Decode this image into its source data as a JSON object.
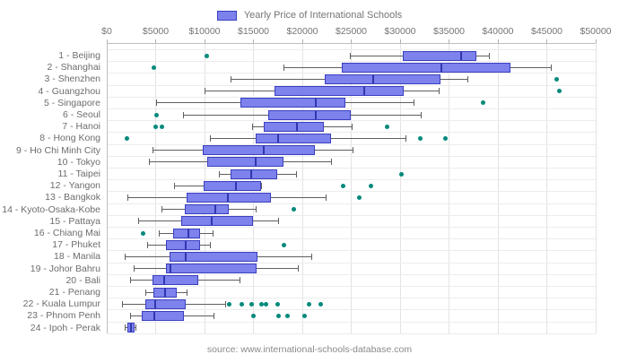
{
  "legend": {
    "label": "Yearly Price of International Schools"
  },
  "source_caption": "source: www.international-schools-database.com",
  "colors": {
    "box_fill": "#7d82ec",
    "box_border": "#3a3fc0",
    "median": "#3136b0",
    "whisker": "#5f5f5f",
    "outlier": "#00897b",
    "vgrid": "#e3e3e3",
    "hgrid": "#ececec",
    "axis_line": "#bdbdbd",
    "tick": "#b0b0b0",
    "text": "#757575"
  },
  "chart_data": {
    "type": "boxplot",
    "orientation": "horizontal",
    "title": "Yearly Price of International Schools",
    "xlabel": "",
    "ylabel": "",
    "xlim": [
      0,
      50000
    ],
    "grid": true,
    "legend_position": "top-center",
    "x_ticks": [
      "$0",
      "$5000",
      "$10000",
      "$15000",
      "$20000",
      "$25000",
      "$30000",
      "$35000",
      "$40000",
      "$45000",
      "$50000"
    ],
    "x_tick_values": [
      0,
      5000,
      10000,
      15000,
      20000,
      25000,
      30000,
      35000,
      40000,
      45000,
      50000
    ],
    "categories": [
      "1 - Beijing",
      "2 - Shanghai",
      "3 - Shenzhen",
      "4 - Guangzhou",
      "5 - Singapore",
      "6 - Seoul",
      "7 - Hanoi",
      "8 - Hong Kong",
      "9 - Ho Chi Minh City",
      "10 - Tokyo",
      "11 - Taipei",
      "12 - Yangon",
      "13 - Bangkok",
      "14 - Kyoto-Osaka-Kobe",
      "15 - Pattaya",
      "16 - Chiang Mai",
      "17 - Phuket",
      "18 - Manila",
      "19 - Johor Bahru",
      "20 - Bali",
      "21 - Penang",
      "22 - Kuala Lumpur",
      "23 - Phnom Penh",
      "24 - Ipoh - Perak"
    ],
    "series": [
      {
        "name": "Yearly Price of International Schools",
        "boxes": [
          {
            "low": 24900,
            "q1": 30300,
            "median": 36200,
            "q3": 37800,
            "high": 39100,
            "outliers": [
              10200
            ]
          },
          {
            "low": 18100,
            "q1": 24000,
            "median": 34200,
            "q3": 41300,
            "high": 45500,
            "outliers": [
              4800
            ]
          },
          {
            "low": 12700,
            "q1": 22300,
            "median": 27200,
            "q3": 34100,
            "high": 36900,
            "outliers": [
              46000
            ]
          },
          {
            "low": 10000,
            "q1": 17200,
            "median": 26300,
            "q3": 30400,
            "high": 34000,
            "outliers": [
              46300
            ]
          },
          {
            "low": 5100,
            "q1": 13700,
            "median": 21300,
            "q3": 24400,
            "high": 31400,
            "outliers": [
              38500
            ]
          },
          {
            "low": 7800,
            "q1": 16500,
            "median": 21300,
            "q3": 25000,
            "high": 32200,
            "outliers": [
              5100
            ]
          },
          {
            "low": 14900,
            "q1": 16100,
            "median": 19400,
            "q3": 22200,
            "high": 25100,
            "outliers": [
              5000,
              5600,
              28700
            ]
          },
          {
            "low": 10600,
            "q1": 15200,
            "median": 17500,
            "q3": 22900,
            "high": 30600,
            "outliers": [
              2100,
              32100,
              34600
            ]
          },
          {
            "low": 4700,
            "q1": 9800,
            "median": 16000,
            "q3": 21300,
            "high": 25200,
            "outliers": []
          },
          {
            "low": 4400,
            "q1": 10300,
            "median": 15200,
            "q3": 18100,
            "high": 23000,
            "outliers": []
          },
          {
            "low": 11500,
            "q1": 12700,
            "median": 14700,
            "q3": 17400,
            "high": 19400,
            "outliers": [
              30100
            ]
          },
          {
            "low": 6900,
            "q1": 9900,
            "median": 13200,
            "q3": 15800,
            "high": 15800,
            "outliers": [
              24200,
              27000
            ]
          },
          {
            "low": 2200,
            "q1": 8200,
            "median": 12300,
            "q3": 16800,
            "high": 22400,
            "outliers": [
              25800
            ]
          },
          {
            "low": 5600,
            "q1": 8000,
            "median": 11100,
            "q3": 12500,
            "high": 15300,
            "outliers": [
              19100
            ]
          },
          {
            "low": 3300,
            "q1": 7600,
            "median": 10700,
            "q3": 15000,
            "high": 17600,
            "outliers": []
          },
          {
            "low": 5400,
            "q1": 6800,
            "median": 8300,
            "q3": 9500,
            "high": 10900,
            "outliers": [
              3700
            ]
          },
          {
            "low": 4200,
            "q1": 6100,
            "median": 8000,
            "q3": 9500,
            "high": 10600,
            "outliers": [
              18100
            ]
          },
          {
            "low": 1900,
            "q1": 6400,
            "median": 8000,
            "q3": 15400,
            "high": 21000,
            "outliers": []
          },
          {
            "low": 2800,
            "q1": 6100,
            "median": 6500,
            "q3": 15300,
            "high": 19600,
            "outliers": []
          },
          {
            "low": 2400,
            "q1": 4700,
            "median": 5800,
            "q3": 9400,
            "high": 13600,
            "outliers": []
          },
          {
            "low": 4000,
            "q1": 4800,
            "median": 5900,
            "q3": 7200,
            "high": 8200,
            "outliers": []
          },
          {
            "low": 1600,
            "q1": 3900,
            "median": 4900,
            "q3": 8100,
            "high": 12200,
            "outliers": [
              12500,
              13800,
              14800,
              15800,
              16300,
              17500,
              20700,
              21900
            ]
          },
          {
            "low": 2400,
            "q1": 3600,
            "median": 4800,
            "q3": 7900,
            "high": 11000,
            "outliers": [
              15000,
              17600,
              18500,
              20200
            ]
          },
          {
            "low": 1900,
            "q1": 2100,
            "median": 2400,
            "q3": 2800,
            "high": 3000,
            "outliers": []
          }
        ]
      }
    ],
    "source": "source: www.international-schools-database.com"
  }
}
